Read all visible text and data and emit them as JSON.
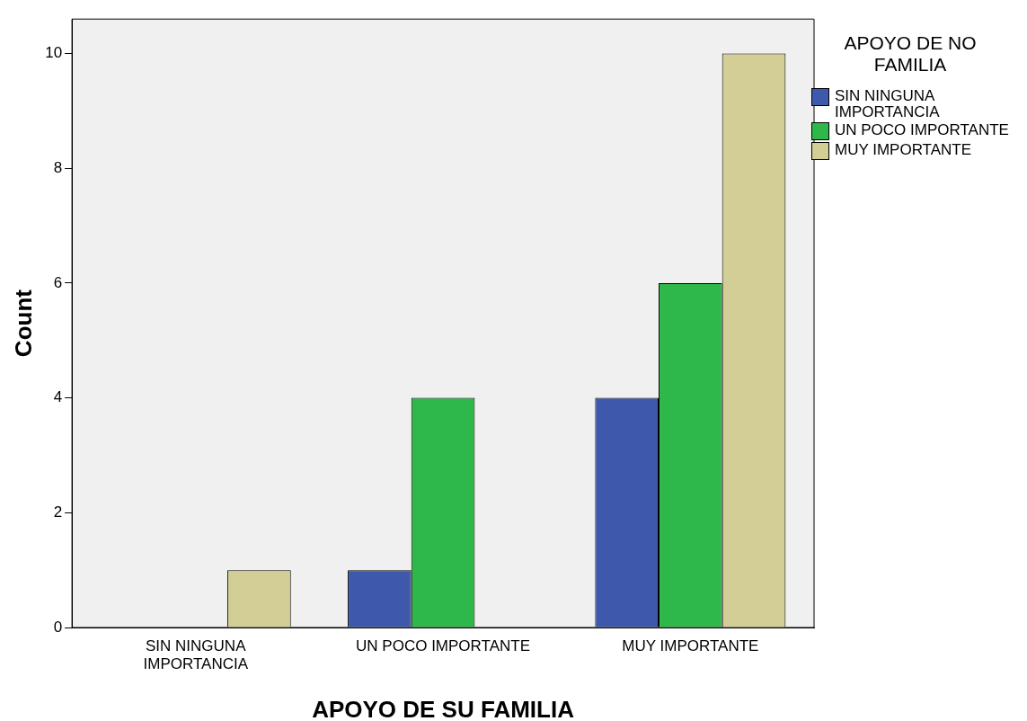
{
  "chart_data": {
    "type": "bar",
    "xlabel": "APOYO DE SU FAMILIA",
    "ylabel": "Count",
    "legend_title": "APOYO DE NO FAMILIA",
    "categories": [
      "SIN NINGUNA IMPORTANCIA",
      "UN POCO IMPORTANTE",
      "MUY IMPORTANTE"
    ],
    "series": [
      {
        "name": "SIN NINGUNA IMPORTANCIA",
        "color": "#3e58ac",
        "values": [
          null,
          1,
          4
        ]
      },
      {
        "name": "UN POCO IMPORTANTE",
        "color": "#2fb84a",
        "values": [
          null,
          4,
          6
        ]
      },
      {
        "name": "MUY IMPORTANTE",
        "color": "#d3ce95",
        "values": [
          1,
          null,
          10
        ]
      }
    ],
    "ylim": [
      0,
      10.6
    ],
    "yticks": [
      0,
      2,
      4,
      6,
      8,
      10
    ],
    "grid": false,
    "legend": "right"
  }
}
